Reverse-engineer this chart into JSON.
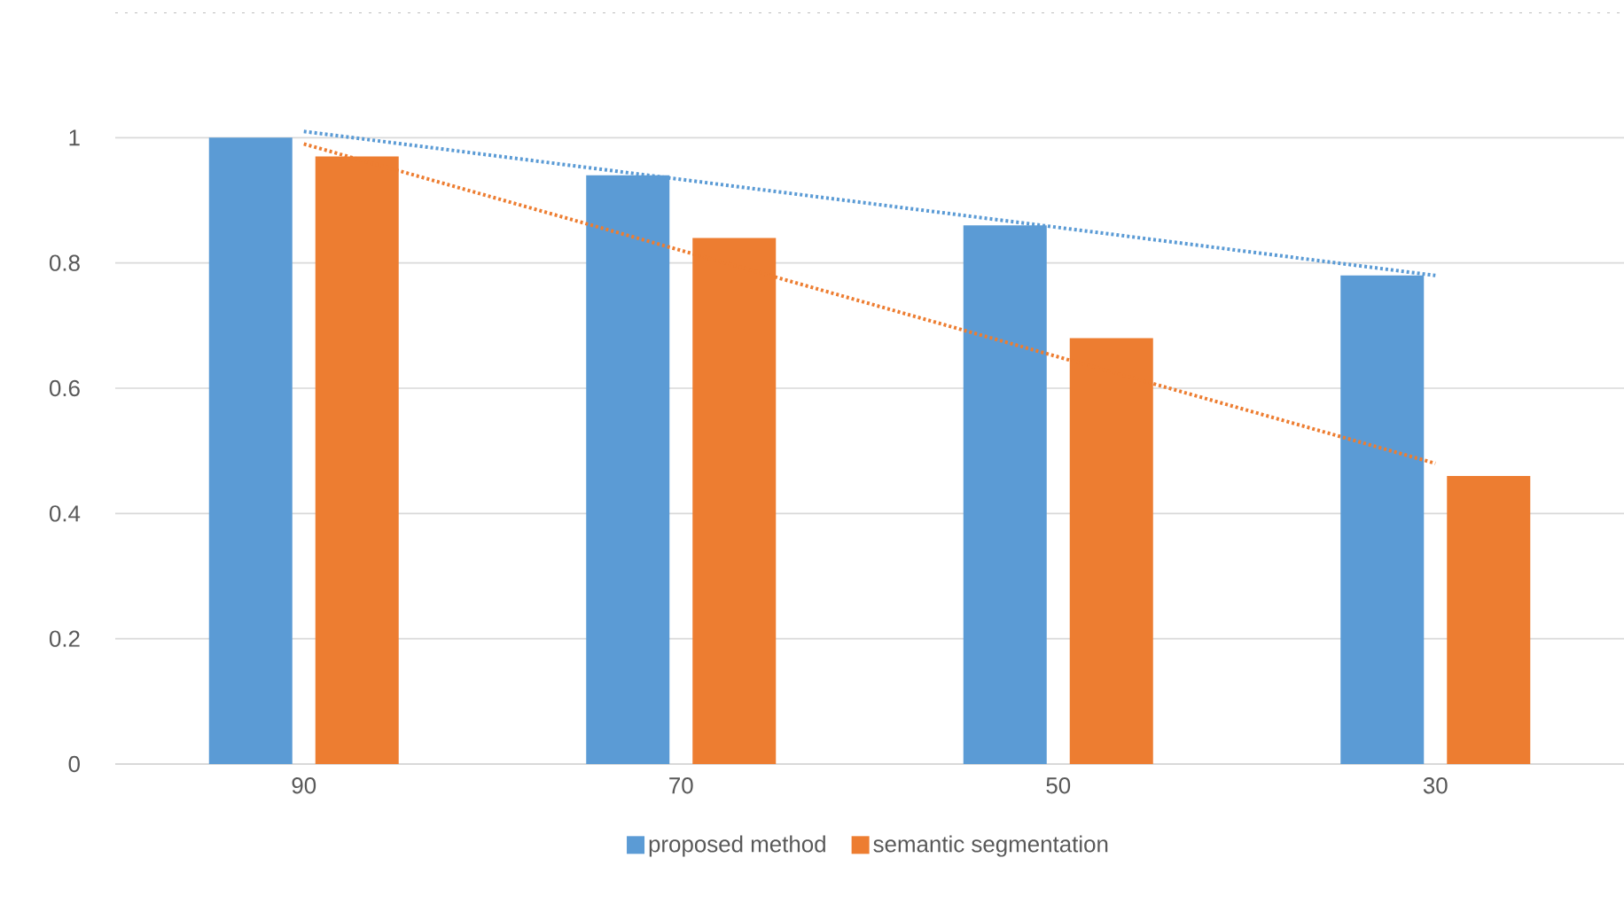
{
  "chart_data": {
    "type": "bar",
    "categories": [
      "90",
      "70",
      "50",
      "30"
    ],
    "series": [
      {
        "name": "proposed method",
        "color": "#5b9bd5",
        "values": [
          1.0,
          0.94,
          0.86,
          0.78
        ]
      },
      {
        "name": "semantic segmentation",
        "color": "#ed7d31",
        "values": [
          0.97,
          0.84,
          0.68,
          0.46
        ]
      },
      {
        "type": "line",
        "color": "#5b9bd5",
        "line_style": "dotted",
        "x": [
          "90",
          "30"
        ],
        "values": [
          1.01,
          0.78
        ]
      },
      {
        "type": "line",
        "color": "#ed7d31",
        "line_style": "dotted",
        "x": [
          "90",
          "30"
        ],
        "values": [
          0.99,
          0.48
        ]
      }
    ],
    "ylim": [
      0,
      1.2
    ],
    "yticks": [
      0,
      0.2,
      0.4,
      0.6,
      0.8,
      1
    ],
    "grid": "y",
    "legend": "bottom"
  }
}
